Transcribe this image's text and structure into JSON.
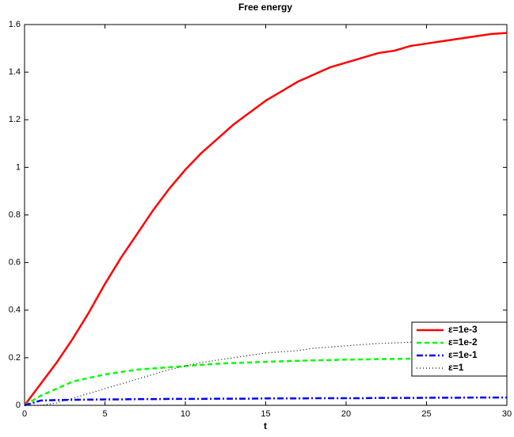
{
  "chart_data": {
    "type": "line",
    "title": "Free energy",
    "x_label": "t",
    "x": [
      0,
      1,
      2,
      3,
      4,
      5,
      6,
      7,
      8,
      9,
      10,
      11,
      12,
      13,
      14,
      15,
      16,
      17,
      18,
      19,
      20,
      21,
      22,
      23,
      24,
      25,
      26,
      27,
      28,
      29,
      30
    ],
    "series": [
      {
        "name": "ε=1e-3",
        "color": "#ff0000",
        "linestyle": "solid",
        "values": [
          0,
          0.09,
          0.18,
          0.28,
          0.39,
          0.51,
          0.62,
          0.72,
          0.82,
          0.91,
          0.99,
          1.06,
          1.12,
          1.18,
          1.23,
          1.28,
          1.32,
          1.36,
          1.39,
          1.42,
          1.44,
          1.46,
          1.48,
          1.49,
          1.51,
          1.52,
          1.53,
          1.54,
          1.55,
          1.56,
          1.565
        ]
      },
      {
        "name": "ε=1e-2",
        "color": "#00ff00",
        "linestyle": "dashed",
        "values": [
          0,
          0.04,
          0.07,
          0.1,
          0.115,
          0.13,
          0.14,
          0.15,
          0.155,
          0.16,
          0.165,
          0.17,
          0.175,
          0.178,
          0.18,
          0.183,
          0.185,
          0.187,
          0.189,
          0.19,
          0.192,
          0.193,
          0.194,
          0.195,
          0.196,
          0.197,
          0.198,
          0.199,
          0.2,
          0.2,
          0.2
        ]
      },
      {
        "name": "ε=1e-1",
        "color": "#0000ff",
        "linestyle": "dashdot",
        "values": [
          0,
          0.02,
          0.022,
          0.023,
          0.024,
          0.025,
          0.025,
          0.026,
          0.026,
          0.027,
          0.027,
          0.027,
          0.028,
          0.028,
          0.028,
          0.029,
          0.029,
          0.029,
          0.03,
          0.03,
          0.03,
          0.03,
          0.031,
          0.031,
          0.031,
          0.032,
          0.032,
          0.032,
          0.033,
          0.033,
          0.033
        ]
      },
      {
        "name": "ε=1",
        "color": "#000000",
        "linestyle": "dotted",
        "values": [
          0,
          0.0,
          0.01,
          0.03,
          0.05,
          0.07,
          0.09,
          0.11,
          0.13,
          0.15,
          0.165,
          0.18,
          0.19,
          0.2,
          0.21,
          0.22,
          0.225,
          0.23,
          0.24,
          0.245,
          0.25,
          0.255,
          0.26,
          0.262,
          0.265,
          0.27,
          0.272,
          0.275,
          0.277,
          0.28,
          0.28
        ]
      }
    ],
    "xlim": [
      0,
      30
    ],
    "xticks": [
      0,
      5,
      10,
      15,
      20,
      25,
      30
    ],
    "ylim": [
      0,
      1.6
    ],
    "yticks": [
      0,
      0.2,
      0.4,
      0.6,
      0.8,
      1,
      1.2,
      1.4,
      1.6
    ],
    "grid": false,
    "legend": "lower right"
  }
}
